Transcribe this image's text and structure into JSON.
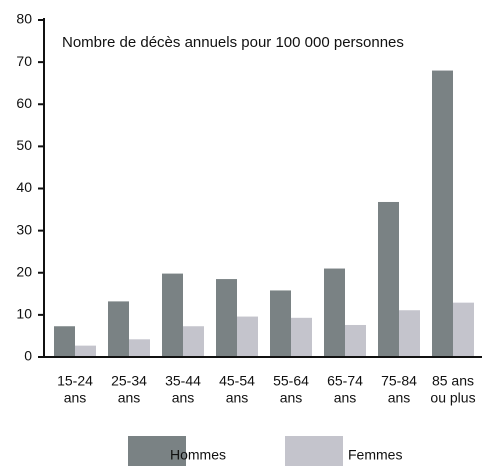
{
  "chart_data": {
    "type": "bar",
    "title": "Nombre de décès annuels pour 100 000 personnes",
    "categories": [
      [
        "15-24",
        "ans"
      ],
      [
        "25-34",
        "ans"
      ],
      [
        "35-44",
        "ans"
      ],
      [
        "45-54",
        "ans"
      ],
      [
        "55-64",
        "ans"
      ],
      [
        "65-74",
        "ans"
      ],
      [
        "75-84",
        "ans"
      ],
      [
        "85 ans",
        "ou plus"
      ]
    ],
    "series": [
      {
        "name": "Hommes",
        "color": "#7a8284",
        "values": [
          7.3,
          13.2,
          19.8,
          18.5,
          15.8,
          21,
          36.8,
          68
        ]
      },
      {
        "name": "Femmes",
        "color": "#c4c4cc",
        "values": [
          2.7,
          4.2,
          7.3,
          9.6,
          9.3,
          7.6,
          11.1,
          12.9
        ]
      }
    ],
    "ylim": [
      0,
      80
    ],
    "yticks": [
      0,
      10,
      20,
      30,
      40,
      50,
      60,
      70,
      80
    ]
  }
}
